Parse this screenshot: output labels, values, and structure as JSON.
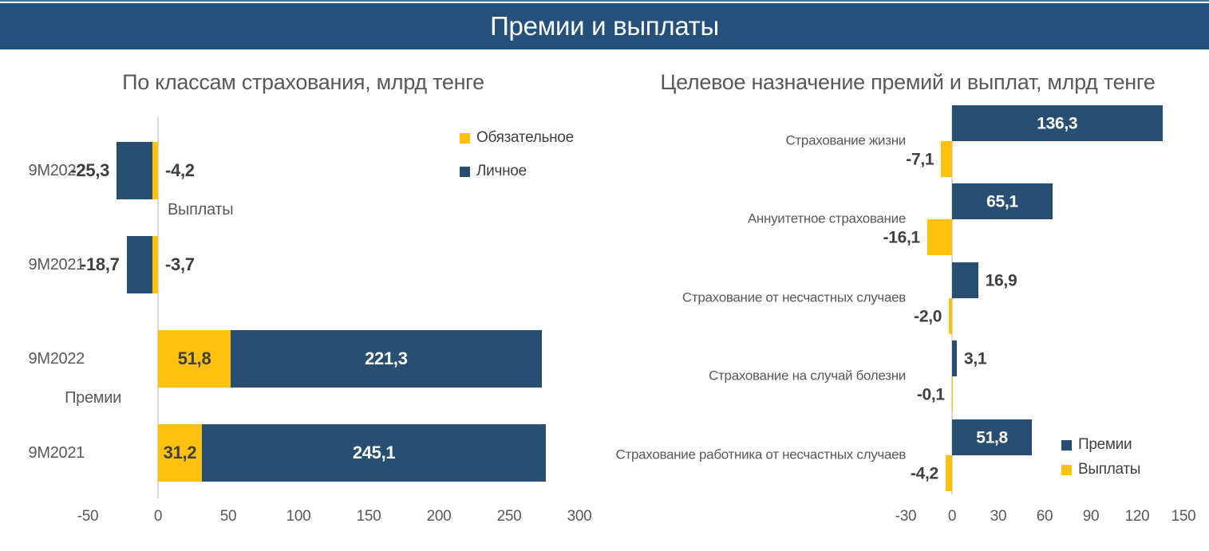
{
  "banner": {
    "title": "Премии и выплаты"
  },
  "colors": {
    "banner_bg": "#23517C",
    "blue": "#284F72",
    "yellow": "#FEC110",
    "title_text": "#595959",
    "axis_text": "#595959",
    "value_text": "#3F3F3F",
    "zero_line": "#D9D9D9",
    "bar_label_light": "#FFFFFF"
  },
  "chart_data": [
    {
      "type": "bar",
      "orientation": "horizontal",
      "stacked": true,
      "title": "По классам страхования, млрд тенге",
      "units": "млрд тенге",
      "xlim": [
        -50,
        300
      ],
      "xticks": [
        -50,
        0,
        50,
        100,
        150,
        200,
        250,
        300
      ],
      "legend_position": "right-top",
      "legend": [
        {
          "name": "Обязательное",
          "color": "yellow"
        },
        {
          "name": "Личное",
          "color": "blue"
        }
      ],
      "groups": [
        {
          "label": "Выплаты",
          "label_side": "right",
          "rows": [
            {
              "period": "9М2022",
              "segments": [
                {
                  "series": "Обязательное",
                  "color": "yellow",
                  "value": -4.2,
                  "label": "-4,2"
                },
                {
                  "series": "Личное",
                  "color": "blue",
                  "value": -25.3,
                  "label": "-25,3"
                }
              ]
            },
            {
              "period": "9М2021",
              "segments": [
                {
                  "series": "Обязательное",
                  "color": "yellow",
                  "value": -3.7,
                  "label": "-3,7"
                },
                {
                  "series": "Личное",
                  "color": "blue",
                  "value": -18.7,
                  "label": "-18,7"
                }
              ]
            }
          ]
        },
        {
          "label": "Премии",
          "label_side": "left",
          "rows": [
            {
              "period": "9М2022",
              "segments": [
                {
                  "series": "Обязательное",
                  "color": "yellow",
                  "value": 51.8,
                  "label": "51,8"
                },
                {
                  "series": "Личное",
                  "color": "blue",
                  "value": 221.3,
                  "label": "221,3"
                }
              ]
            },
            {
              "period": "9М2021",
              "segments": [
                {
                  "series": "Обязательное",
                  "color": "yellow",
                  "value": 31.2,
                  "label": "31,2"
                },
                {
                  "series": "Личное",
                  "color": "blue",
                  "value": 245.1,
                  "label": "245,1"
                }
              ]
            }
          ]
        }
      ]
    },
    {
      "type": "bar",
      "orientation": "horizontal",
      "stacked": false,
      "title": "Целевое назначение премий и выплат, млрд тенге",
      "units": "млрд тенге",
      "xlim": [
        -30,
        150
      ],
      "xticks": [
        -30,
        0,
        30,
        60,
        90,
        120,
        150
      ],
      "legend_position": "right-bottom",
      "legend": [
        {
          "name": "Премии",
          "color": "blue"
        },
        {
          "name": "Выплаты",
          "color": "yellow"
        }
      ],
      "categories": [
        {
          "label": "Страхование жизни",
          "premium": 136.3,
          "premium_label": "136,3",
          "payout": -7.1,
          "payout_label": "-7,1"
        },
        {
          "label": "Аннуитетное страхование",
          "premium": 65.1,
          "premium_label": "65,1",
          "payout": -16.1,
          "payout_label": "-16,1"
        },
        {
          "label": "Страхование от несчастных случаев",
          "premium": 16.9,
          "premium_label": "16,9",
          "payout": -2.0,
          "payout_label": "-2,0"
        },
        {
          "label": "Страхование на случай болезни",
          "premium": 3.1,
          "premium_label": "3,1",
          "payout": -0.1,
          "payout_label": "-0,1"
        },
        {
          "label": "Страхование работника от несчастных случаев",
          "premium": 51.8,
          "premium_label": "51,8",
          "payout": -4.2,
          "payout_label": "-4,2"
        }
      ]
    }
  ]
}
